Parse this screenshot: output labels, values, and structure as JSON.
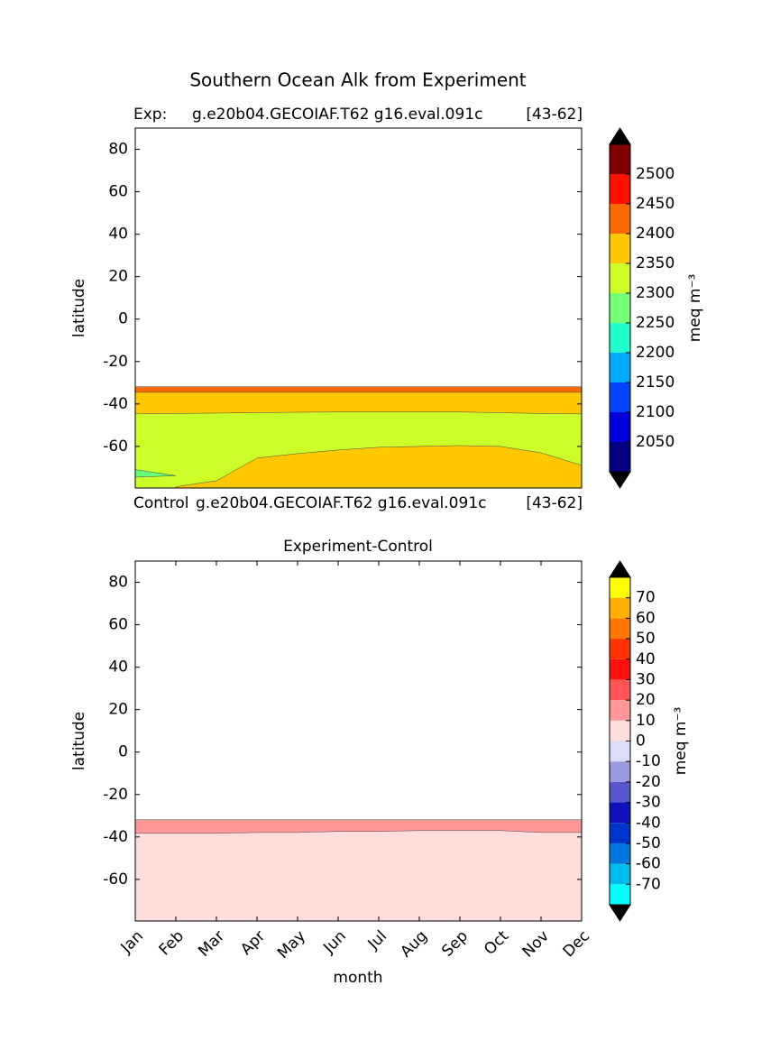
{
  "chart_data": [
    {
      "type": "contour",
      "title": "Southern Ocean Alk from Experiment",
      "label_left": "Exp:",
      "label_center": "g.e20b04.GECOIAF.T62 g16.eval.091c",
      "label_right": "[43-62]",
      "bottom_left": "Control",
      "bottom_center": "g.e20b04.GECOIAF.T62 g16.eval.091c",
      "bottom_right": "[43-62]",
      "ylabel": "latitude",
      "ylim": [
        -79.6,
        90
      ],
      "yticks": [
        -60,
        -40,
        -20,
        0,
        20,
        40,
        60,
        80
      ],
      "layers": [
        {
          "color": "#ff6a00",
          "top": [
            -31.9,
            -31.9,
            -31.9,
            -31.9,
            -31.9,
            -31.9,
            -31.9,
            -31.9,
            -31.9,
            -31.9,
            -31.9,
            -31.9
          ]
        },
        {
          "color": "#ffc800",
          "top": [
            -34.5,
            -34.5,
            -34.5,
            -34.5,
            -34.5,
            -34.5,
            -34.5,
            -34.5,
            -34.5,
            -34.5,
            -34.5,
            -34.5
          ]
        },
        {
          "color": "#ccff2a",
          "top": [
            -44.7,
            -44.5,
            -44.3,
            -44.1,
            -43.9,
            -43.8,
            -43.8,
            -43.8,
            -43.8,
            -44.1,
            -44.5,
            -44.7
          ]
        },
        {
          "color": "#ffc800",
          "top": [
            null,
            -79,
            -76.2,
            -65.5,
            -63.4,
            -61.7,
            -60.4,
            -60,
            -59.6,
            -60,
            -63,
            -68.9
          ]
        },
        {
          "color": "#66ff77",
          "top": [
            -70.9,
            -73.8,
            null,
            null,
            null,
            null,
            null,
            null,
            null,
            null,
            null,
            null
          ],
          "bottom": [
            -74.5,
            -73.8,
            null,
            null,
            null,
            null,
            null,
            null,
            null,
            null,
            null,
            null
          ]
        }
      ],
      "colorbar": {
        "label": "meq m⁻³",
        "extend_color": "#000000",
        "levels": [
          2000,
          2050,
          2100,
          2150,
          2200,
          2250,
          2300,
          2350,
          2400,
          2450,
          2500,
          2550
        ],
        "colors": [
          "#000080",
          "#0000dd",
          "#0044ff",
          "#00aaff",
          "#22ffcc",
          "#77ff77",
          "#ccff2a",
          "#ffc800",
          "#ff6a00",
          "#ff1100",
          "#800000"
        ],
        "ticks": [
          2050,
          2100,
          2150,
          2200,
          2250,
          2300,
          2350,
          2400,
          2450,
          2500
        ]
      }
    },
    {
      "type": "contour",
      "subtitle": "Experiment-Control",
      "xlabel": "month",
      "ylabel": "latitude",
      "categories": [
        "Jan",
        "Feb",
        "Mar",
        "Apr",
        "May",
        "Jun",
        "Jul",
        "Aug",
        "Sep",
        "Oct",
        "Nov",
        "Dec"
      ],
      "ylim": [
        -79.6,
        90
      ],
      "yticks": [
        -60,
        -40,
        -20,
        0,
        20,
        40,
        60,
        80
      ],
      "layers": [
        {
          "color": "#ff9999",
          "top": [
            -31.9,
            -31.9,
            -31.9,
            -31.9,
            -31.9,
            -31.9,
            -31.9,
            -31.9,
            -31.9,
            -31.9,
            -31.9,
            -31.9
          ]
        },
        {
          "color": "#ffdddd",
          "top": [
            -38.3,
            -38.3,
            -38.3,
            -37.9,
            -37.9,
            -37.4,
            -37.4,
            -37.0,
            -37.0,
            -37.0,
            -37.9,
            -37.9
          ]
        }
      ],
      "colorbar": {
        "label": "meq m⁻³",
        "extend_color": "#000000",
        "levels": [
          -80,
          -70,
          -60,
          -50,
          -40,
          -30,
          -20,
          -10,
          0,
          10,
          20,
          30,
          40,
          50,
          60,
          70,
          80
        ],
        "colors": [
          "#00ffff",
          "#00bbee",
          "#0077dd",
          "#0033cc",
          "#1111bb",
          "#5555cc",
          "#9999dd",
          "#ddddf7",
          "#ffdddd",
          "#ff9999",
          "#ff5555",
          "#ff1111",
          "#ff3300",
          "#ff7700",
          "#ffb000",
          "#ffff00"
        ],
        "ticks": [
          -70,
          -60,
          -50,
          -40,
          -30,
          -20,
          -10,
          0,
          10,
          20,
          30,
          40,
          50,
          60,
          70
        ]
      }
    }
  ]
}
